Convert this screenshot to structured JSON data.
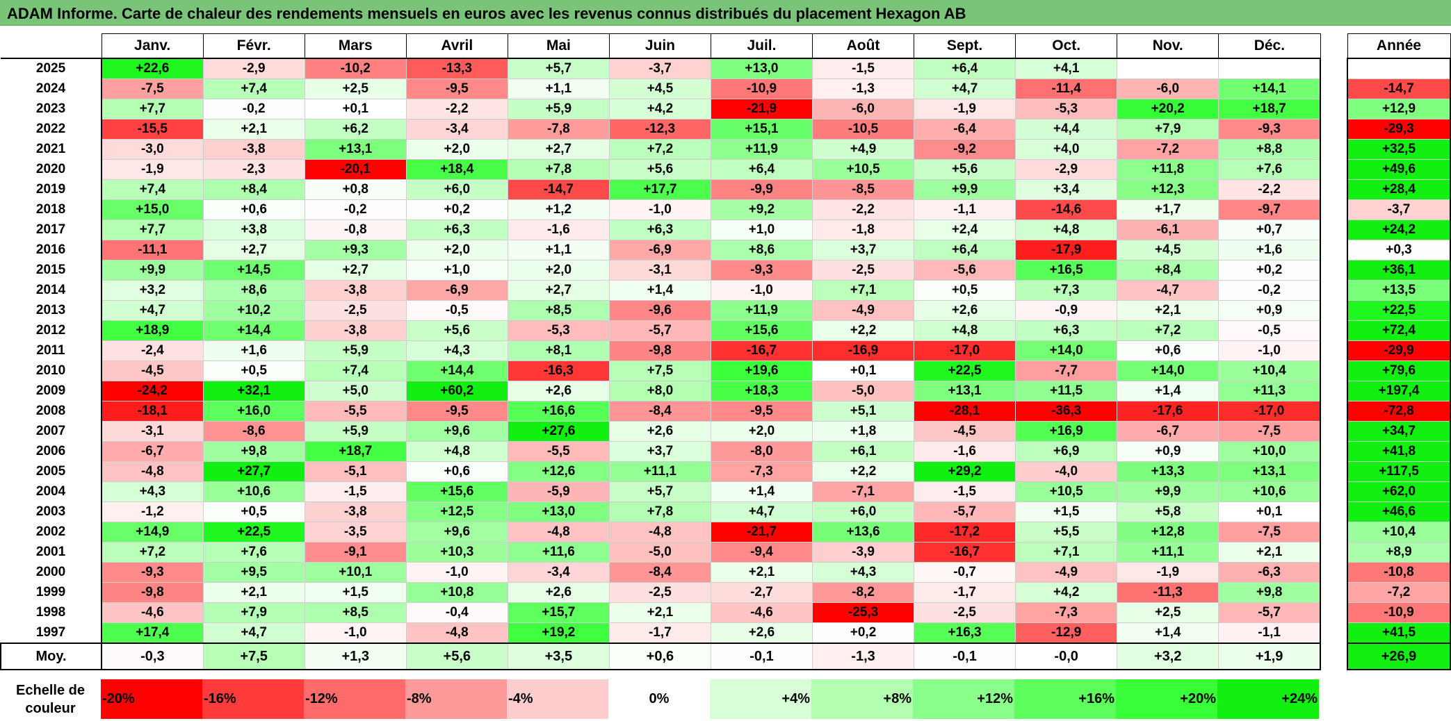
{
  "title": "ADAM Informe. Carte de chaleur des rendements mensuels en euros avec les revenus connus distribués du placement Hexagon AB",
  "chart_data": {
    "type": "heatmap",
    "columns": [
      "Janv.",
      "Févr.",
      "Mars",
      "Avril",
      "Mai",
      "Juin",
      "Juil.",
      "Août",
      "Sept.",
      "Oct.",
      "Nov.",
      "Déc."
    ],
    "year_header": "Année",
    "rows": [
      {
        "year": "2025",
        "values": [
          22.6,
          -2.9,
          -10.2,
          -13.3,
          5.7,
          -3.7,
          13.0,
          -1.5,
          6.4,
          4.1,
          null,
          null
        ],
        "annual": null
      },
      {
        "year": "2024",
        "values": [
          -7.5,
          7.4,
          2.5,
          -9.5,
          1.1,
          4.5,
          -10.9,
          -1.3,
          4.7,
          -11.4,
          -6.0,
          14.1
        ],
        "annual": -14.7
      },
      {
        "year": "2023",
        "values": [
          7.7,
          -0.2,
          0.1,
          -2.2,
          5.9,
          4.2,
          -21.9,
          -6.0,
          -1.9,
          -5.3,
          20.2,
          18.7
        ],
        "annual": 12.9
      },
      {
        "year": "2022",
        "values": [
          -15.5,
          2.1,
          6.2,
          -3.4,
          -7.8,
          -12.3,
          15.1,
          -10.5,
          -6.4,
          4.4,
          7.9,
          -9.3
        ],
        "annual": -29.3
      },
      {
        "year": "2021",
        "values": [
          -3.0,
          -3.8,
          13.1,
          2.0,
          2.7,
          7.2,
          11.9,
          4.9,
          -9.2,
          4.0,
          -7.2,
          8.8
        ],
        "annual": 32.5
      },
      {
        "year": "2020",
        "values": [
          -1.9,
          -2.3,
          -20.1,
          18.4,
          7.8,
          5.6,
          6.4,
          10.5,
          5.6,
          -2.9,
          11.8,
          7.6
        ],
        "annual": 49.6
      },
      {
        "year": "2019",
        "values": [
          7.4,
          8.4,
          0.8,
          6.0,
          -14.7,
          17.7,
          -9.9,
          -8.5,
          9.9,
          3.4,
          12.3,
          -2.2
        ],
        "annual": 28.4
      },
      {
        "year": "2018",
        "values": [
          15.0,
          0.6,
          -0.2,
          0.2,
          1.2,
          -1.0,
          9.2,
          -2.2,
          -1.1,
          -14.6,
          1.7,
          -9.7
        ],
        "annual": -3.7
      },
      {
        "year": "2017",
        "values": [
          7.7,
          3.8,
          -0.8,
          6.3,
          -1.6,
          6.3,
          1.0,
          -1.8,
          2.4,
          4.8,
          -6.1,
          0.7
        ],
        "annual": 24.2
      },
      {
        "year": "2016",
        "values": [
          -11.1,
          2.7,
          9.3,
          2.0,
          1.1,
          -6.9,
          8.6,
          3.7,
          6.4,
          -17.9,
          4.5,
          1.6
        ],
        "annual": 0.3
      },
      {
        "year": "2015",
        "values": [
          9.9,
          14.5,
          2.7,
          1.0,
          2.0,
          -3.1,
          -9.3,
          -2.5,
          -5.6,
          16.5,
          8.4,
          0.2
        ],
        "annual": 36.1
      },
      {
        "year": "2014",
        "values": [
          3.2,
          8.6,
          -3.8,
          -6.9,
          2.7,
          1.4,
          -1.0,
          7.1,
          0.5,
          7.3,
          -4.7,
          -0.2
        ],
        "annual": 13.5
      },
      {
        "year": "2013",
        "values": [
          4.7,
          10.2,
          -2.5,
          -0.5,
          8.5,
          -9.6,
          11.9,
          -4.9,
          2.6,
          -0.9,
          2.1,
          0.9
        ],
        "annual": 22.5
      },
      {
        "year": "2012",
        "values": [
          18.9,
          14.4,
          -3.8,
          5.6,
          -5.3,
          -5.7,
          15.6,
          2.2,
          4.8,
          6.3,
          7.2,
          -0.5
        ],
        "annual": 72.4
      },
      {
        "year": "2011",
        "values": [
          -2.4,
          1.6,
          5.9,
          4.3,
          8.1,
          -9.8,
          -16.7,
          -16.9,
          -17.0,
          14.0,
          0.6,
          -1.0
        ],
        "annual": -29.9
      },
      {
        "year": "2010",
        "values": [
          -4.5,
          0.5,
          7.4,
          14.4,
          -16.3,
          7.5,
          19.6,
          0.1,
          22.5,
          -7.7,
          14.0,
          10.4
        ],
        "annual": 79.6
      },
      {
        "year": "2009",
        "values": [
          -24.2,
          32.1,
          5.0,
          60.2,
          2.6,
          8.0,
          18.3,
          -5.0,
          13.1,
          11.5,
          1.4,
          11.3
        ],
        "annual": 197.4
      },
      {
        "year": "2008",
        "values": [
          -18.1,
          16.0,
          -5.5,
          -9.5,
          16.6,
          -8.4,
          -9.5,
          5.1,
          -28.1,
          -36.3,
          -17.6,
          -17.0
        ],
        "annual": -72.8
      },
      {
        "year": "2007",
        "values": [
          -3.1,
          -8.6,
          5.9,
          9.6,
          27.6,
          2.6,
          2.0,
          1.8,
          -4.5,
          16.9,
          -6.7,
          -7.5
        ],
        "annual": 34.7
      },
      {
        "year": "2006",
        "values": [
          -6.7,
          9.8,
          18.7,
          4.8,
          -5.5,
          3.7,
          -8.0,
          6.1,
          -1.6,
          6.9,
          0.9,
          10.0
        ],
        "annual": 41.8
      },
      {
        "year": "2005",
        "values": [
          -4.8,
          27.7,
          -5.1,
          0.6,
          12.6,
          11.1,
          -7.3,
          2.2,
          29.2,
          -4.0,
          13.3,
          13.1
        ],
        "annual": 117.5
      },
      {
        "year": "2004",
        "values": [
          4.3,
          10.6,
          -1.5,
          15.6,
          -5.9,
          5.7,
          1.4,
          -7.1,
          -1.5,
          10.5,
          9.9,
          10.6
        ],
        "annual": 62.0
      },
      {
        "year": "2003",
        "values": [
          -1.2,
          0.5,
          -3.8,
          12.5,
          13.0,
          7.8,
          4.7,
          6.0,
          -5.7,
          1.5,
          5.8,
          0.1
        ],
        "annual": 46.6
      },
      {
        "year": "2002",
        "values": [
          14.9,
          22.5,
          -3.5,
          9.6,
          -4.8,
          -4.8,
          -21.7,
          13.6,
          -17.2,
          5.5,
          12.8,
          -7.5
        ],
        "annual": 10.4
      },
      {
        "year": "2001",
        "values": [
          7.2,
          7.6,
          -9.1,
          10.3,
          11.6,
          -5.0,
          -9.4,
          -3.9,
          -16.7,
          7.1,
          11.1,
          2.1
        ],
        "annual": 8.9
      },
      {
        "year": "2000",
        "values": [
          -9.3,
          9.5,
          10.1,
          -1.0,
          -3.4,
          -8.4,
          2.1,
          4.3,
          -0.7,
          -4.9,
          -1.9,
          -6.3
        ],
        "annual": -10.8
      },
      {
        "year": "1999",
        "values": [
          -9.8,
          2.1,
          1.5,
          10.8,
          2.6,
          -2.5,
          -2.7,
          -8.2,
          -1.7,
          4.2,
          -11.3,
          9.8
        ],
        "annual": -7.2
      },
      {
        "year": "1998",
        "values": [
          -4.6,
          7.9,
          8.5,
          -0.4,
          15.7,
          2.1,
          -4.6,
          -25.3,
          -2.5,
          -7.3,
          2.5,
          -5.7
        ],
        "annual": -10.9
      },
      {
        "year": "1997",
        "values": [
          17.4,
          4.7,
          -1.0,
          -4.8,
          19.2,
          -1.7,
          2.6,
          0.2,
          16.3,
          -12.9,
          1.4,
          -1.1
        ],
        "annual": 41.5
      }
    ],
    "average": {
      "label": "Moy.",
      "values": [
        -0.3,
        7.5,
        1.3,
        5.6,
        3.5,
        0.6,
        -0.1,
        -1.3,
        -0.1,
        -0.0,
        3.2,
        1.9
      ],
      "annual": 26.9
    },
    "scale": {
      "label_line1": "Echelle de",
      "label_line2": "couleur",
      "steps": [
        {
          "value": -20,
          "label": "-20%",
          "color": "#ff0000"
        },
        {
          "value": -16,
          "label": "-16%",
          "color": "#ff3b3b"
        },
        {
          "value": -12,
          "label": "-12%",
          "color": "#ff6a6a"
        },
        {
          "value": -8,
          "label": "-8%",
          "color": "#ff9a9a"
        },
        {
          "value": -4,
          "label": "-4%",
          "color": "#ffcdcd"
        },
        {
          "value": 0,
          "label": "0%",
          "color": "#ffffff"
        },
        {
          "value": 4,
          "label": "+4%",
          "color": "#d8ffd8"
        },
        {
          "value": 8,
          "label": "+8%",
          "color": "#b2ffb2"
        },
        {
          "value": 12,
          "label": "+12%",
          "color": "#8bff8b"
        },
        {
          "value": 16,
          "label": "+16%",
          "color": "#5cff5c"
        },
        {
          "value": 20,
          "label": "+20%",
          "color": "#38ff38"
        },
        {
          "value": 24,
          "label": "+24%",
          "color": "#11f011"
        }
      ]
    },
    "colors": {
      "negative_max": "#ff0000",
      "zero": "#ffffff",
      "positive_max": "#11f011",
      "title_bar": "#79c479"
    }
  }
}
